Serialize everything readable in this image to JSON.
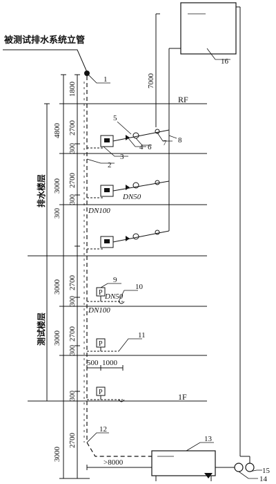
{
  "title": "被测试排水系统立管",
  "floor_labels": {
    "drain_floors": "排水楼层",
    "test_floors": "测试楼层",
    "roof": "RF",
    "first_floor": "1F"
  },
  "pipe_labels": {
    "dn100_a": "DN100",
    "dn50_a": "DN50",
    "dn50_b": "DN50",
    "dn100_b": "DN100"
  },
  "dimensions": {
    "d1800": "1800",
    "d4800": "4800",
    "d2700_a": "2700",
    "d300_a": "300",
    "d3000_a": "3000",
    "d2700_b": "2700",
    "d300_b": "300",
    "d300_c": "300",
    "d3000_b": "3000",
    "d2700_c": "2700",
    "d300_d": "300",
    "d3000_c": "3000",
    "d2700_d": "2700",
    "d300_e": "300",
    "d500": "500",
    "d1000": "1000",
    "d300_f": "300",
    "d3000_d": "3000",
    "d2700_e": "2700",
    "d7000": "7000",
    "d8000": ">8000"
  },
  "callouts": [
    "1",
    "2",
    "3",
    "4",
    "5",
    "6",
    "7",
    "8",
    "9",
    "10",
    "11",
    "12",
    "13",
    "14",
    "15",
    "16"
  ],
  "meter_symbol": "P"
}
